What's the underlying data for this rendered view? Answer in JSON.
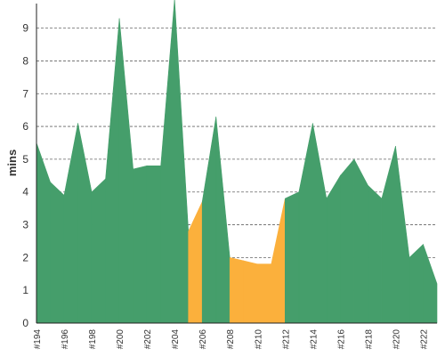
{
  "chart_data": {
    "type": "area",
    "ylabel": "mins",
    "xlabel": "",
    "ylim": [
      0,
      9.75
    ],
    "yticks": [
      0,
      1,
      2,
      3,
      4,
      5,
      6,
      7,
      8,
      9
    ],
    "grid": true,
    "legend": "none",
    "x_labels_shown": [
      "#194",
      "#196",
      "#198",
      "#200",
      "#202",
      "#204",
      "#206",
      "#208",
      "#210",
      "#212",
      "#214",
      "#216",
      "#218",
      "#220",
      "#222"
    ],
    "x": [
      "#194",
      "#195",
      "#196",
      "#197",
      "#198",
      "#199",
      "#200",
      "#201",
      "#202",
      "#203",
      "#204",
      "#205",
      "#206",
      "#207",
      "#208",
      "#209",
      "#210",
      "#211",
      "#212",
      "#213",
      "#214",
      "#215",
      "#216",
      "#217",
      "#218",
      "#219",
      "#220",
      "#221",
      "#222",
      "#223"
    ],
    "values": [
      5.5,
      4.3,
      3.9,
      6.1,
      4.0,
      4.4,
      9.3,
      4.7,
      4.8,
      4.8,
      9.9,
      2.8,
      3.7,
      6.3,
      2.0,
      1.9,
      1.8,
      1.8,
      3.8,
      4.0,
      6.1,
      3.8,
      4.5,
      5.0,
      4.2,
      3.8,
      5.4,
      2.0,
      2.4,
      1.2
    ],
    "status": [
      "success",
      "success",
      "success",
      "success",
      "success",
      "success",
      "success",
      "success",
      "success",
      "success",
      "success",
      "unstable",
      "success",
      "success",
      "unstable",
      "unstable",
      "unstable",
      "unstable",
      "success",
      "success",
      "success",
      "success",
      "success",
      "success",
      "success",
      "success",
      "success",
      "success",
      "success",
      "unstable"
    ],
    "colors": {
      "success": "#459e6b",
      "unstable": "#fbb03c"
    }
  }
}
